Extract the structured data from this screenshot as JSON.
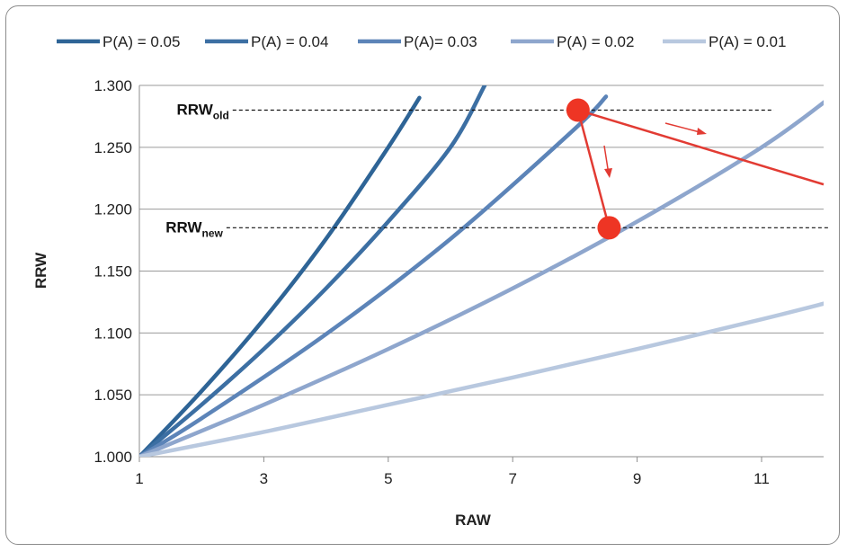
{
  "chart_data": {
    "type": "line",
    "title": "",
    "xlabel": "RAW",
    "ylabel": "RRW",
    "xlim": [
      1,
      12.1
    ],
    "ylim": [
      1.0,
      1.3
    ],
    "xticks": [
      "1",
      "3",
      "5",
      "7",
      "9",
      "11"
    ],
    "yticks": [
      "1.000",
      "1.050",
      "1.100",
      "1.150",
      "1.200",
      "1.250",
      "1.300"
    ],
    "grid": "horizontal",
    "legend": "top",
    "series": [
      {
        "name": "P(A) = 0.05",
        "color": "#2e6496",
        "x": [
          1,
          2,
          3,
          4,
          5,
          5.5
        ],
        "y": [
          1.0,
          1.053,
          1.111,
          1.176,
          1.25,
          1.29
        ]
      },
      {
        "name": "P(A) = 0.04",
        "color": "#3c6fa3",
        "x": [
          1,
          2,
          3,
          4,
          5,
          6,
          6.55
        ],
        "y": [
          1.0,
          1.042,
          1.087,
          1.136,
          1.19,
          1.25,
          1.3
        ]
      },
      {
        "name": "P(A)= 0.03",
        "color": "#5c84b8",
        "x": [
          1,
          2,
          4,
          6,
          8,
          8.5
        ],
        "y": [
          1.0,
          1.031,
          1.099,
          1.176,
          1.265,
          1.291
        ]
      },
      {
        "name": "P(A) = 0.02",
        "color": "#8ea6cd",
        "x": [
          1,
          3,
          5,
          7,
          9,
          11,
          12.1
        ],
        "y": [
          1.0,
          1.042,
          1.087,
          1.136,
          1.19,
          1.25,
          1.29
        ]
      },
      {
        "name": "P(A) = 0.01",
        "color": "#b8c8df",
        "x": [
          1,
          3,
          5,
          7,
          9,
          11,
          12.1
        ],
        "y": [
          1.0,
          1.02,
          1.042,
          1.064,
          1.087,
          1.111,
          1.125
        ]
      }
    ],
    "annotations": {
      "rrw_old": {
        "main": "RRW",
        "sub": "old",
        "y": 1.28,
        "x_from": 2.5,
        "x_to": 11.2
      },
      "rrw_new": {
        "main": "RRW",
        "sub": "new",
        "y": 1.185,
        "x_from": 2.4,
        "x_to": 12.1
      },
      "points": [
        {
          "x": 8.05,
          "y": 1.28,
          "color": "#ee3524"
        },
        {
          "x": 8.55,
          "y": 1.185,
          "color": "#ee3524"
        }
      ],
      "red_line": {
        "from": [
          8.05,
          1.28
        ],
        "to": [
          12.1,
          1.22
        ],
        "color": "#e23b33"
      },
      "red_drop": {
        "from": [
          8.05,
          1.28
        ],
        "to": [
          8.55,
          1.185
        ],
        "color": "#e23b33"
      }
    }
  }
}
